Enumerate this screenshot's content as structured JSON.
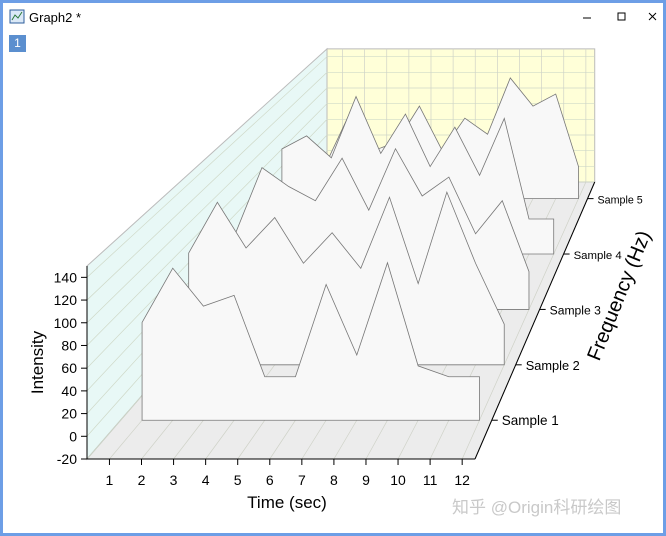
{
  "window": {
    "title": "Graph2 *",
    "layer": "1"
  },
  "watermark": "知乎 @Origin科研绘图",
  "chart_data": {
    "type": "waterfall",
    "xlabel": "Time (sec)",
    "ylabel": "Intensity",
    "zlabel": "Frequency (Hz)",
    "x": [
      1,
      2,
      3,
      4,
      5,
      6,
      7,
      8,
      9,
      10,
      11,
      12
    ],
    "xlim": [
      0.3,
      12.4
    ],
    "xticks": [
      1,
      2,
      3,
      4,
      5,
      6,
      7,
      8,
      9,
      10,
      11,
      12
    ],
    "ylim": [
      -20,
      150
    ],
    "yticks": [
      -20,
      0,
      20,
      40,
      60,
      80,
      100,
      120,
      140
    ],
    "series": [
      {
        "name": "Sample 1",
        "color": "#f8f8f8",
        "values": [
          70,
          120,
          85,
          95,
          20,
          20,
          105,
          40,
          125,
          30,
          20,
          20
        ]
      },
      {
        "name": "Sample 2",
        "color": "#f8f8f8",
        "values": [
          90,
          140,
          95,
          125,
          80,
          110,
          75,
          145,
          60,
          150,
          80,
          20
        ]
      },
      {
        "name": "Sample 3",
        "color": "#f8f8f8",
        "values": [
          60,
          130,
          110,
          95,
          140,
          85,
          150,
          100,
          120,
          60,
          95,
          20
        ]
      },
      {
        "name": "Sample 4",
        "color": "#f8f8f8",
        "values": [
          100,
          115,
          90,
          160,
          95,
          140,
          80,
          125,
          70,
          135,
          20,
          20
        ]
      },
      {
        "name": "Sample 5",
        "color": "#f8f8f8",
        "values": [
          30,
          90,
          40,
          50,
          95,
          40,
          80,
          60,
          130,
          95,
          110,
          20
        ]
      }
    ]
  }
}
